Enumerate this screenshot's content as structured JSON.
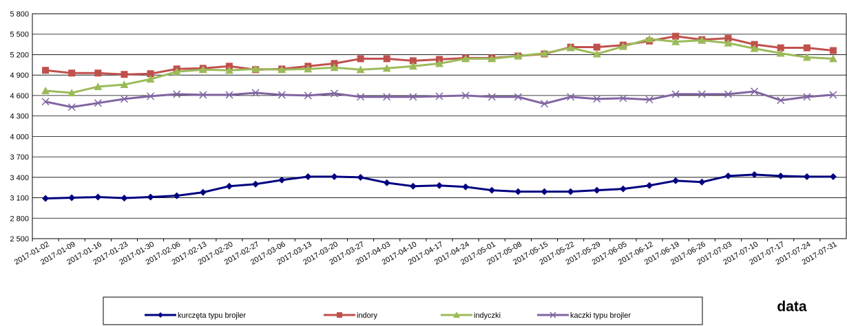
{
  "chart_data": {
    "type": "line",
    "x_label": "data",
    "categories": [
      "2017-01-02",
      "2017-01-09",
      "2017-01-16",
      "2017-01-23",
      "2017-01-30",
      "2017-02-06",
      "2017-02-13",
      "2017-02-20",
      "2017-02-27",
      "2017-03-06",
      "2017-03-13",
      "2017-03-20",
      "2017-03-27",
      "2017-04-03",
      "2017-04-10",
      "2017-04-17",
      "2017-04-24",
      "2017-05-01",
      "2017-05-08",
      "2017-05-15",
      "2017-05-22",
      "2017-05-29",
      "2017-06-05",
      "2017-06-12",
      "2017-06-19",
      "2017-06-26",
      "2017-07-03",
      "2017-07-10",
      "2017-07-17",
      "2017-07-24",
      "2017-07-31"
    ],
    "series": [
      {
        "name": "kurczęta typu brojler",
        "color": "#000080",
        "marker": "diamond",
        "values": [
          3090,
          3100,
          3110,
          3095,
          3110,
          3130,
          3180,
          3270,
          3300,
          3360,
          3410,
          3410,
          3400,
          3320,
          3270,
          3280,
          3260,
          3210,
          3190,
          3190,
          3190,
          3210,
          3230,
          3280,
          3350,
          3330,
          3420,
          3440,
          3420,
          3410,
          3410
        ]
      },
      {
        "name": "indory",
        "color": "#c0504d",
        "marker": "square",
        "values": [
          4970,
          4930,
          4930,
          4910,
          4920,
          4990,
          5000,
          5030,
          4980,
          4990,
          5030,
          5070,
          5140,
          5140,
          5110,
          5130,
          5150,
          5150,
          5180,
          5210,
          5310,
          5310,
          5340,
          5400,
          5470,
          5420,
          5440,
          5350,
          5300,
          5300,
          5260
        ]
      },
      {
        "name": "indyczki",
        "color": "#9bbb59",
        "marker": "triangle",
        "values": [
          4670,
          4640,
          4730,
          4760,
          4840,
          4950,
          4980,
          4970,
          4990,
          4980,
          4990,
          5010,
          4980,
          5000,
          5030,
          5070,
          5140,
          5140,
          5180,
          5220,
          5300,
          5210,
          5320,
          5430,
          5390,
          5410,
          5370,
          5290,
          5220,
          5160,
          5140
        ]
      },
      {
        "name": "kaczki typu brojler",
        "color": "#8064a2",
        "marker": "x",
        "values": [
          4510,
          4430,
          4490,
          4550,
          4590,
          4620,
          4610,
          4610,
          4640,
          4610,
          4600,
          4630,
          4580,
          4580,
          4580,
          4590,
          4600,
          4580,
          4580,
          4480,
          4580,
          4550,
          4560,
          4540,
          4620,
          4620,
          4620,
          4660,
          4530,
          4580,
          4610
        ]
      }
    ],
    "ylim": [
      2500,
      5800
    ],
    "yticks": [
      {
        "value": 2500,
        "label": "2 500"
      },
      {
        "value": 2800,
        "label": "2 800"
      },
      {
        "value": 3100,
        "label": "3 100"
      },
      {
        "value": 3400,
        "label": "3 400"
      },
      {
        "value": 3700,
        "label": "3 700"
      },
      {
        "value": 4000,
        "label": "4 000"
      },
      {
        "value": 4300,
        "label": "4 300"
      },
      {
        "value": 4600,
        "label": "4 600"
      },
      {
        "value": 4900,
        "label": "4 900"
      },
      {
        "value": 5200,
        "label": "5 200"
      },
      {
        "value": 5500,
        "label": "5 500"
      },
      {
        "value": 5800,
        "label": "5 800"
      }
    ],
    "grid": true
  }
}
